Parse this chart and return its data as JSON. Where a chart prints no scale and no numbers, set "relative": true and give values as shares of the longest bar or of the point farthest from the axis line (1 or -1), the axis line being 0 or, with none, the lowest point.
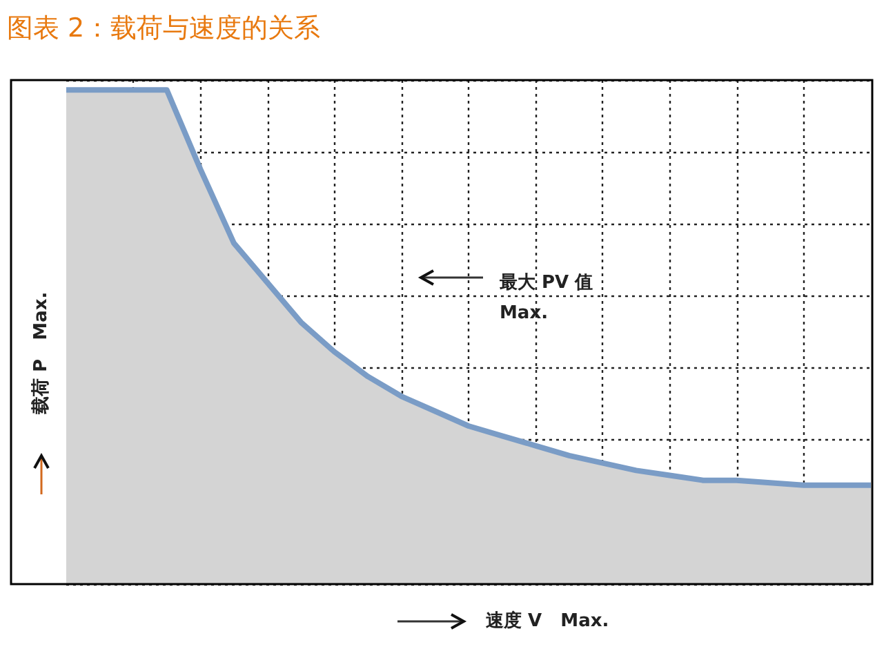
{
  "chart_data": {
    "type": "area",
    "title": "图表 2：载荷与速度的关系",
    "xlabel": "速度 V   Max.",
    "ylabel": "载荷 P   Max.",
    "annotations": [
      "最大 PV 值\nMax."
    ],
    "categories": [
      null,
      null,
      null,
      null,
      null,
      null,
      null,
      null,
      null,
      null,
      null,
      null,
      null,
      null,
      null,
      null,
      null,
      null,
      null,
      null,
      null,
      null,
      null,
      null,
      null
    ],
    "series": [
      {
        "color": "#7a9cc6",
        "values": [
          1,
          1,
          1,
          1,
          0.84,
          0.69,
          0.61,
          0.53,
          0.47,
          0.42,
          0.38,
          0.35,
          0.32,
          0.3,
          0.28,
          0.26,
          0.245,
          0.23,
          0.22,
          0.21,
          0.21,
          0.205,
          0.2,
          0.2,
          0.2
        ]
      }
    ],
    "relative": true,
    "grid": true
  }
}
